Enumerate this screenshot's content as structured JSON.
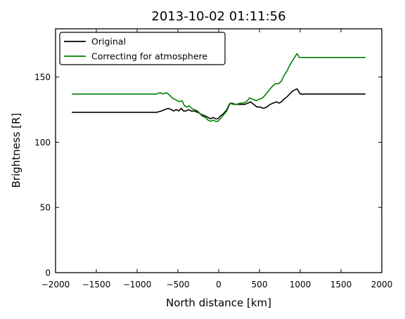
{
  "chart_data": {
    "type": "line",
    "title": "2013-10-02 01:11:56",
    "xlabel": "North distance [km]",
    "ylabel": "Brightness [R]",
    "xlim": [
      -2000,
      2000
    ],
    "ylim": [
      0,
      187
    ],
    "xticks": [
      -2000,
      -1500,
      -1000,
      -500,
      0,
      500,
      1000,
      1500,
      2000
    ],
    "yticks": [
      0,
      50,
      100,
      150
    ],
    "xtick_labels": [
      "−2000",
      "−1500",
      "−1000",
      "−500",
      "0",
      "500",
      "1000",
      "1500",
      "2000"
    ],
    "ytick_labels": [
      "0",
      "50",
      "100",
      "150"
    ],
    "grid": false,
    "legend_position": "top-left",
    "series": [
      {
        "name": "Original",
        "color": "#000000",
        "points": [
          [
            -1800,
            123
          ],
          [
            -760,
            123
          ],
          [
            -700,
            124
          ],
          [
            -660,
            125
          ],
          [
            -620,
            126
          ],
          [
            -580,
            125
          ],
          [
            -550,
            124
          ],
          [
            -520,
            125
          ],
          [
            -490,
            124
          ],
          [
            -460,
            126
          ],
          [
            -430,
            124
          ],
          [
            -400,
            124
          ],
          [
            -370,
            125
          ],
          [
            -340,
            124
          ],
          [
            -300,
            124
          ],
          [
            -260,
            123
          ],
          [
            -230,
            122
          ],
          [
            -200,
            121
          ],
          [
            -160,
            120
          ],
          [
            -130,
            119
          ],
          [
            -100,
            118
          ],
          [
            -70,
            119
          ],
          [
            -40,
            118
          ],
          [
            -10,
            118
          ],
          [
            20,
            120
          ],
          [
            60,
            122
          ],
          [
            100,
            125
          ],
          [
            130,
            129
          ],
          [
            160,
            130
          ],
          [
            200,
            129
          ],
          [
            240,
            129
          ],
          [
            280,
            129
          ],
          [
            320,
            129
          ],
          [
            360,
            130
          ],
          [
            390,
            131
          ],
          [
            430,
            129
          ],
          [
            470,
            127
          ],
          [
            510,
            127
          ],
          [
            550,
            126
          ],
          [
            590,
            127
          ],
          [
            630,
            129
          ],
          [
            670,
            130
          ],
          [
            710,
            131
          ],
          [
            740,
            130
          ],
          [
            770,
            131
          ],
          [
            800,
            133
          ],
          [
            840,
            135
          ],
          [
            870,
            137
          ],
          [
            900,
            139
          ],
          [
            930,
            140
          ],
          [
            960,
            141
          ],
          [
            1000,
            137
          ],
          [
            1800,
            137
          ]
        ]
      },
      {
        "name": "Correcting for atmosphere",
        "color": "#008000",
        "points": [
          [
            -1800,
            137
          ],
          [
            -760,
            137
          ],
          [
            -720,
            138
          ],
          [
            -680,
            137
          ],
          [
            -640,
            138
          ],
          [
            -600,
            136
          ],
          [
            -570,
            134
          ],
          [
            -540,
            133
          ],
          [
            -510,
            132
          ],
          [
            -480,
            131
          ],
          [
            -450,
            132
          ],
          [
            -420,
            128
          ],
          [
            -390,
            127
          ],
          [
            -360,
            128
          ],
          [
            -330,
            126
          ],
          [
            -300,
            125
          ],
          [
            -260,
            124
          ],
          [
            -230,
            122
          ],
          [
            -200,
            120
          ],
          [
            -160,
            119
          ],
          [
            -130,
            117
          ],
          [
            -100,
            116
          ],
          [
            -70,
            117
          ],
          [
            -40,
            116
          ],
          [
            -10,
            116
          ],
          [
            20,
            118
          ],
          [
            60,
            121
          ],
          [
            100,
            124
          ],
          [
            140,
            130
          ],
          [
            180,
            129
          ],
          [
            220,
            129
          ],
          [
            260,
            130
          ],
          [
            300,
            130
          ],
          [
            340,
            131
          ],
          [
            380,
            134
          ],
          [
            420,
            133
          ],
          [
            460,
            132
          ],
          [
            500,
            133
          ],
          [
            540,
            134
          ],
          [
            580,
            137
          ],
          [
            620,
            140
          ],
          [
            660,
            143
          ],
          [
            700,
            145
          ],
          [
            740,
            145
          ],
          [
            770,
            147
          ],
          [
            800,
            151
          ],
          [
            840,
            155
          ],
          [
            880,
            160
          ],
          [
            920,
            164
          ],
          [
            960,
            168
          ],
          [
            990,
            165
          ],
          [
            1800,
            165
          ]
        ]
      }
    ]
  }
}
